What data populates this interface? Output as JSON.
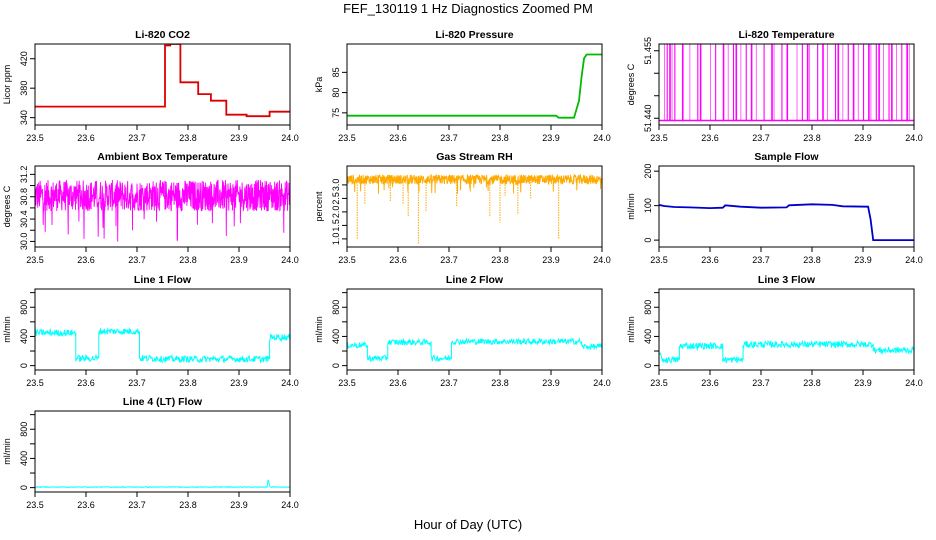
{
  "figure": {
    "title": "FEF_130119  1 Hz Diagnostics Zoomed PM",
    "xlabel": "Hour of Day (UTC)"
  },
  "chart_data": [
    {
      "type": "line",
      "title": "Li-820 CO2",
      "ylabel": "Licor ppm",
      "xlim": [
        23.5,
        24.0
      ],
      "ylim": [
        330,
        440
      ],
      "xticks": [
        23.5,
        23.6,
        23.7,
        23.8,
        23.9,
        24.0
      ],
      "xtick_labels": [
        "23.5",
        "23.6",
        "23.7",
        "23.8",
        "23.9",
        "24.0"
      ],
      "yticks": [
        340,
        380,
        420
      ],
      "ytick_labels": [
        "340",
        "380",
        "420"
      ],
      "series": [
        {
          "color": "#dd0000",
          "x": [
            23.5,
            23.755,
            23.755,
            23.765,
            23.765,
            23.785,
            23.785,
            23.82,
            23.82,
            23.845,
            23.845,
            23.875,
            23.875,
            23.915,
            23.915,
            23.96,
            23.96,
            24.0
          ],
          "y": [
            355,
            355,
            438,
            438,
            440,
            440,
            388,
            388,
            372,
            372,
            363,
            363,
            344,
            344,
            342,
            342,
            348,
            348
          ]
        }
      ]
    },
    {
      "type": "line",
      "title": "Li-820 Pressure",
      "ylabel": "kPa",
      "xlim": [
        23.5,
        24.0
      ],
      "ylim": [
        72,
        92
      ],
      "xticks": [
        23.5,
        23.6,
        23.7,
        23.8,
        23.9,
        24.0
      ],
      "xtick_labels": [
        "23.5",
        "23.6",
        "23.7",
        "23.8",
        "23.9",
        "24.0"
      ],
      "yticks": [
        75,
        80,
        85
      ],
      "ytick_labels": [
        "75",
        "80",
        "85"
      ],
      "series": [
        {
          "color": "#00bb00",
          "x": [
            23.5,
            23.91,
            23.915,
            23.945,
            23.955,
            23.96,
            23.965,
            23.97,
            24.0
          ],
          "y": [
            74.3,
            74.3,
            73.8,
            73.8,
            78,
            84,
            88.5,
            89.4,
            89.4
          ]
        }
      ]
    },
    {
      "type": "line",
      "title": "Li-820 Temperature",
      "ylabel": "degrees C",
      "xlim": [
        23.5,
        24.0
      ],
      "ylim": [
        51.4385,
        51.4565
      ],
      "xticks": [
        23.5,
        23.6,
        23.7,
        23.8,
        23.9,
        24.0
      ],
      "xtick_labels": [
        "23.5",
        "23.6",
        "23.7",
        "23.8",
        "23.9",
        "24.0"
      ],
      "yticks": [
        51.44,
        51.445,
        51.45,
        51.455
      ],
      "ytick_labels": [
        "51.440",
        "",
        "",
        "51.455"
      ],
      "series": [
        {
          "color": "#ff00ff",
          "spikes_at": [
            23.51,
            23.515,
            23.52,
            23.525,
            23.53,
            23.545,
            23.56,
            23.575,
            23.58,
            23.6,
            23.61,
            23.625,
            23.635,
            23.645,
            23.65,
            23.66,
            23.67,
            23.68,
            23.69,
            23.705,
            23.72,
            23.725,
            23.74,
            23.75,
            23.77,
            23.78,
            23.79,
            23.795,
            23.81,
            23.82,
            23.83,
            23.845,
            23.85,
            23.86,
            23.87,
            23.88,
            23.89,
            23.9,
            23.91,
            23.915,
            23.925,
            23.93,
            23.94,
            23.95,
            23.955,
            23.965,
            23.975,
            23.985,
            23.99
          ],
          "low": 51.4395,
          "high": 51.4565
        }
      ]
    },
    {
      "type": "line",
      "title": "Ambient Box Temperature",
      "ylabel": "degrees C",
      "xlim": [
        23.5,
        24.0
      ],
      "ylim": [
        29.9,
        31.35
      ],
      "xticks": [
        23.5,
        23.6,
        23.7,
        23.8,
        23.9,
        24.0
      ],
      "xtick_labels": [
        "23.5",
        "23.6",
        "23.7",
        "23.8",
        "23.9",
        "24.0"
      ],
      "yticks": [
        30.0,
        30.2,
        30.4,
        30.6,
        30.8,
        31.0,
        31.2
      ],
      "ytick_labels": [
        "30.0",
        "",
        "30.4",
        "",
        "30.8",
        "",
        "31.2"
      ],
      "series": [
        {
          "color": "#ff00ff",
          "noise_center": 30.82,
          "noise_amplitude": 0.28
        }
      ]
    },
    {
      "type": "line",
      "title": "Gas Stream RH",
      "ylabel": "percent",
      "xlim": [
        23.5,
        24.0
      ],
      "ylim": [
        0.7,
        3.7
      ],
      "xticks": [
        23.5,
        23.6,
        23.7,
        23.8,
        23.9,
        24.0
      ],
      "xtick_labels": [
        "23.5",
        "23.6",
        "23.7",
        "23.8",
        "23.9",
        "24.0"
      ],
      "yticks": [
        1.0,
        1.5,
        2.0,
        2.5,
        3.0
      ],
      "ytick_labels": [
        "1.0",
        "1.5",
        "2.0",
        "2.5",
        "3.0"
      ],
      "series": [
        {
          "color": "#ffaa00",
          "noise_center": 3.2,
          "noise_amplitude": 0.18,
          "dips": [
            [
              23.52,
              1.0
            ],
            [
              23.535,
              2.3
            ],
            [
              23.585,
              2.4
            ],
            [
              23.61,
              2.3
            ],
            [
              23.62,
              1.8
            ],
            [
              23.64,
              0.8
            ],
            [
              23.655,
              2.0
            ],
            [
              23.715,
              2.2
            ],
            [
              23.78,
              1.8
            ],
            [
              23.8,
              1.6
            ],
            [
              23.81,
              2.6
            ],
            [
              23.835,
              1.9
            ],
            [
              23.86,
              2.5
            ],
            [
              23.915,
              1.0
            ]
          ]
        }
      ]
    },
    {
      "type": "line",
      "title": "Sample Flow",
      "ylabel": "ml/min",
      "xlim": [
        23.5,
        24.0
      ],
      "ylim": [
        -20,
        215
      ],
      "xticks": [
        23.5,
        23.6,
        23.7,
        23.8,
        23.9,
        24.0
      ],
      "xtick_labels": [
        "23.5",
        "23.6",
        "23.7",
        "23.8",
        "23.9",
        "24.0"
      ],
      "yticks": [
        0,
        100,
        200
      ],
      "ytick_labels": [
        "0",
        "100",
        "200"
      ],
      "series": [
        {
          "color": "#0000cc",
          "x": [
            23.5,
            23.51,
            23.53,
            23.56,
            23.6,
            23.625,
            23.63,
            23.66,
            23.7,
            23.75,
            23.755,
            23.8,
            23.84,
            23.86,
            23.91,
            23.915,
            23.92,
            24.0
          ],
          "y": [
            102,
            99,
            96,
            95,
            93,
            94,
            101,
            97,
            94,
            95,
            101,
            104,
            102,
            98,
            97,
            60,
            0,
            0
          ]
        }
      ]
    },
    {
      "type": "line",
      "title": "Line 1 Flow",
      "ylabel": "ml/min",
      "xlim": [
        23.5,
        24.0
      ],
      "ylim": [
        -60,
        1050
      ],
      "xticks": [
        23.5,
        23.6,
        23.7,
        23.8,
        23.9,
        24.0
      ],
      "xtick_labels": [
        "23.5",
        "23.6",
        "23.7",
        "23.8",
        "23.9",
        "24.0"
      ],
      "yticks": [
        0,
        200,
        400,
        600,
        800,
        1000
      ],
      "ytick_labels": [
        "0",
        "",
        "400",
        "",
        "800",
        ""
      ],
      "series": [
        {
          "color": "#00ffff",
          "x": [
            23.5,
            23.58,
            23.58,
            23.625,
            23.625,
            23.705,
            23.705,
            23.745,
            23.745,
            23.96,
            23.96,
            24.0
          ],
          "y": [
            450,
            450,
            100,
            100,
            470,
            470,
            100,
            100,
            90,
            90,
            390,
            390
          ],
          "noise": 45
        }
      ]
    },
    {
      "type": "line",
      "title": "Line 2 Flow",
      "ylabel": "ml/min",
      "xlim": [
        23.5,
        24.0
      ],
      "ylim": [
        -60,
        1050
      ],
      "xticks": [
        23.5,
        23.6,
        23.7,
        23.8,
        23.9,
        24.0
      ],
      "xtick_labels": [
        "23.5",
        "23.6",
        "23.7",
        "23.8",
        "23.9",
        "24.0"
      ],
      "yticks": [
        0,
        200,
        400,
        600,
        800,
        1000
      ],
      "ytick_labels": [
        "0",
        "",
        "400",
        "",
        "800",
        ""
      ],
      "series": [
        {
          "color": "#00ffff",
          "x": [
            23.5,
            23.54,
            23.54,
            23.58,
            23.58,
            23.665,
            23.665,
            23.705,
            23.705,
            23.96,
            23.96,
            24.0
          ],
          "y": [
            280,
            280,
            100,
            100,
            320,
            320,
            100,
            100,
            330,
            330,
            260,
            260
          ],
          "noise": 40
        }
      ]
    },
    {
      "type": "line",
      "title": "Line 3 Flow",
      "ylabel": "ml/min",
      "xlim": [
        23.5,
        24.0
      ],
      "ylim": [
        -60,
        1050
      ],
      "xticks": [
        23.5,
        23.6,
        23.7,
        23.8,
        23.9,
        24.0
      ],
      "xtick_labels": [
        "23.5",
        "23.6",
        "23.7",
        "23.8",
        "23.9",
        "24.0"
      ],
      "yticks": [
        0,
        200,
        400,
        600,
        800,
        1000
      ],
      "ytick_labels": [
        "0",
        "",
        "400",
        "",
        "800",
        ""
      ],
      "series": [
        {
          "color": "#00ffff",
          "x": [
            23.5,
            23.5,
            23.505,
            23.54,
            23.54,
            23.625,
            23.625,
            23.665,
            23.665,
            23.92,
            23.92,
            24.0
          ],
          "y": [
            260,
            220,
            80,
            80,
            270,
            270,
            80,
            80,
            290,
            290,
            210,
            210
          ],
          "noise": 45
        }
      ]
    },
    {
      "type": "line",
      "title": "Line 4 (LT) Flow",
      "ylabel": "ml/min",
      "xlim": [
        23.5,
        24.0
      ],
      "ylim": [
        -60,
        1050
      ],
      "xticks": [
        23.5,
        23.6,
        23.7,
        23.8,
        23.9,
        24.0
      ],
      "xtick_labels": [
        "23.5",
        "23.6",
        "23.7",
        "23.8",
        "23.9",
        "24.0"
      ],
      "yticks": [
        0,
        200,
        400,
        600,
        800,
        1000
      ],
      "ytick_labels": [
        "0",
        "",
        "400",
        "",
        "800",
        ""
      ],
      "series": [
        {
          "color": "#00ffff",
          "x": [
            23.5,
            23.955,
            23.957,
            23.96,
            23.962,
            24.0
          ],
          "y": [
            8,
            8,
            110,
            30,
            8,
            8
          ],
          "noise": 4
        }
      ]
    }
  ]
}
